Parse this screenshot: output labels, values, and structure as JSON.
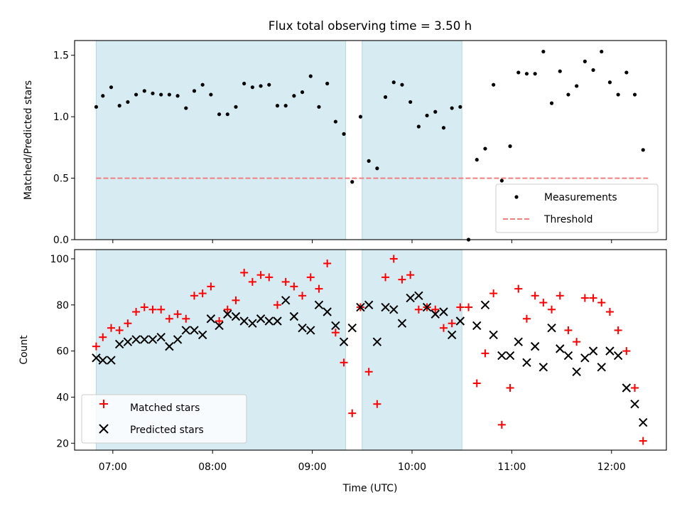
{
  "title": "Flux total observing time = 3.50 h",
  "chart_data": [
    {
      "type": "scatter",
      "ylabel": "Matched/Predicted stars",
      "ylim": [
        0,
        1.62
      ],
      "yticks": [
        0.0,
        0.5,
        1.0,
        1.5
      ],
      "ytick_labels": [
        "0.0",
        "0.5",
        "1.0",
        "1.5"
      ],
      "threshold": 0.5,
      "legend_position": "lower right",
      "legend": [
        "Measurements",
        "Threshold"
      ],
      "series": [
        {
          "name": "Measurements",
          "color": "#000000",
          "marker": "dot",
          "x": [
            "06:50",
            "06:54",
            "06:59",
            "07:04",
            "07:09",
            "07:14",
            "07:19",
            "07:24",
            "07:29",
            "07:34",
            "07:39",
            "07:44",
            "07:49",
            "07:54",
            "07:59",
            "08:04",
            "08:09",
            "08:14",
            "08:19",
            "08:24",
            "08:29",
            "08:34",
            "08:39",
            "08:44",
            "08:49",
            "08:54",
            "08:59",
            "09:04",
            "09:09",
            "09:14",
            "09:19",
            "09:24",
            "09:29",
            "09:34",
            "09:39",
            "09:44",
            "09:49",
            "09:54",
            "09:59",
            "10:04",
            "10:09",
            "10:14",
            "10:19",
            "10:24",
            "10:29",
            "10:34",
            "10:39",
            "10:44",
            "10:49",
            "10:54",
            "10:59",
            "11:04",
            "11:09",
            "11:14",
            "11:19",
            "11:24",
            "11:29",
            "11:34",
            "11:39",
            "11:44",
            "11:49",
            "11:54",
            "11:59",
            "12:04",
            "12:09",
            "12:14",
            "12:19"
          ],
          "y": [
            1.08,
            1.17,
            1.24,
            1.09,
            1.12,
            1.18,
            1.21,
            1.19,
            1.18,
            1.18,
            1.17,
            1.07,
            1.21,
            1.26,
            1.18,
            1.02,
            1.02,
            1.08,
            1.27,
            1.24,
            1.25,
            1.26,
            1.09,
            1.09,
            1.17,
            1.2,
            1.33,
            1.08,
            1.27,
            0.96,
            0.86,
            0.47,
            1.0,
            0.64,
            0.58,
            1.16,
            1.28,
            1.26,
            1.12,
            0.92,
            1.01,
            1.04,
            0.91,
            1.07,
            1.08,
            0.0,
            0.65,
            0.74,
            1.26,
            0.48,
            0.76,
            1.36,
            1.35,
            1.35,
            1.53,
            1.11,
            1.37,
            1.18,
            1.25,
            1.45,
            1.38,
            1.53,
            1.28,
            1.18,
            1.36,
            1.18,
            0.73
          ]
        },
        {
          "name": "Threshold",
          "color": "#f08080",
          "style": "dashed",
          "x": [
            "06:50",
            "12:22"
          ],
          "y": [
            0.5,
            0.5
          ]
        }
      ]
    },
    {
      "type": "scatter",
      "ylabel": "Count",
      "xlabel": "Time (UTC)",
      "ylim": [
        17,
        104
      ],
      "yticks": [
        20,
        40,
        60,
        80,
        100
      ],
      "ytick_labels": [
        "20",
        "40",
        "60",
        "80",
        "100"
      ],
      "xticks": [
        "07:00",
        "08:00",
        "09:00",
        "10:00",
        "11:00",
        "12:00"
      ],
      "legend_position": "lower left",
      "legend": [
        "Matched stars",
        "Predicted stars"
      ],
      "series": [
        {
          "name": "Matched stars",
          "color": "#ff0000",
          "marker": "plus",
          "x": [
            "06:50",
            "06:54",
            "06:59",
            "07:04",
            "07:09",
            "07:14",
            "07:19",
            "07:24",
            "07:29",
            "07:34",
            "07:39",
            "07:44",
            "07:49",
            "07:54",
            "07:59",
            "08:04",
            "08:09",
            "08:14",
            "08:19",
            "08:24",
            "08:29",
            "08:34",
            "08:39",
            "08:44",
            "08:49",
            "08:54",
            "08:59",
            "09:04",
            "09:09",
            "09:14",
            "09:19",
            "09:24",
            "09:29",
            "09:34",
            "09:39",
            "09:44",
            "09:49",
            "09:54",
            "09:59",
            "10:04",
            "10:09",
            "10:14",
            "10:19",
            "10:24",
            "10:29",
            "10:34",
            "10:39",
            "10:44",
            "10:49",
            "10:54",
            "10:59",
            "11:04",
            "11:09",
            "11:14",
            "11:19",
            "11:24",
            "11:29",
            "11:34",
            "11:39",
            "11:44",
            "11:49",
            "11:54",
            "11:59",
            "12:04",
            "12:09",
            "12:14",
            "12:19"
          ],
          "y": [
            62,
            66,
            70,
            69,
            72,
            77,
            79,
            78,
            78,
            74,
            76,
            74,
            84,
            85,
            88,
            73,
            78,
            82,
            94,
            90,
            93,
            92,
            80,
            90,
            88,
            84,
            92,
            87,
            98,
            68,
            55,
            33,
            79,
            51,
            37,
            92,
            100,
            91,
            93,
            78,
            79,
            78,
            70,
            72,
            79,
            79,
            46,
            59,
            85,
            28,
            44,
            87,
            74,
            84,
            81,
            78,
            84,
            69,
            64,
            83,
            83,
            81,
            77,
            69,
            60,
            44,
            21
          ]
        },
        {
          "name": "Predicted stars",
          "color": "#000000",
          "marker": "x",
          "x": [
            "06:50",
            "06:54",
            "06:59",
            "07:04",
            "07:09",
            "07:14",
            "07:19",
            "07:24",
            "07:29",
            "07:34",
            "07:39",
            "07:44",
            "07:49",
            "07:54",
            "07:59",
            "08:04",
            "08:09",
            "08:14",
            "08:19",
            "08:24",
            "08:29",
            "08:34",
            "08:39",
            "08:44",
            "08:49",
            "08:54",
            "08:59",
            "09:04",
            "09:09",
            "09:14",
            "09:19",
            "09:24",
            "09:29",
            "09:34",
            "09:39",
            "09:44",
            "09:49",
            "09:54",
            "09:59",
            "10:04",
            "10:09",
            "10:14",
            "10:19",
            "10:24",
            "10:29",
            "10:34",
            "10:39",
            "10:44",
            "10:49",
            "10:54",
            "10:59",
            "11:04",
            "11:09",
            "11:14",
            "11:19",
            "11:24",
            "11:29",
            "11:34",
            "11:39",
            "11:44",
            "11:49",
            "11:54",
            "11:59",
            "12:04",
            "12:09",
            "12:14",
            "12:19"
          ],
          "y": [
            57,
            56,
            56,
            63,
            64,
            65,
            65,
            65,
            66,
            62,
            65,
            69,
            69,
            67,
            74,
            71,
            76,
            75,
            73,
            72,
            74,
            73,
            73,
            82,
            75,
            70,
            69,
            80,
            77,
            71,
            64,
            70,
            79,
            80,
            64,
            79,
            78,
            72,
            83,
            84,
            79,
            76,
            77,
            67,
            73,
            null,
            71,
            80,
            67,
            58,
            58,
            64,
            55,
            62,
            53,
            70,
            61,
            58,
            51,
            57,
            60,
            53,
            60,
            58,
            44,
            37,
            29
          ]
        }
      ]
    }
  ],
  "shaded_spans": [
    {
      "start": "06:50",
      "end": "09:20",
      "color": "#add8e6"
    },
    {
      "start": "09:30",
      "end": "10:30",
      "color": "#add8e6"
    }
  ]
}
